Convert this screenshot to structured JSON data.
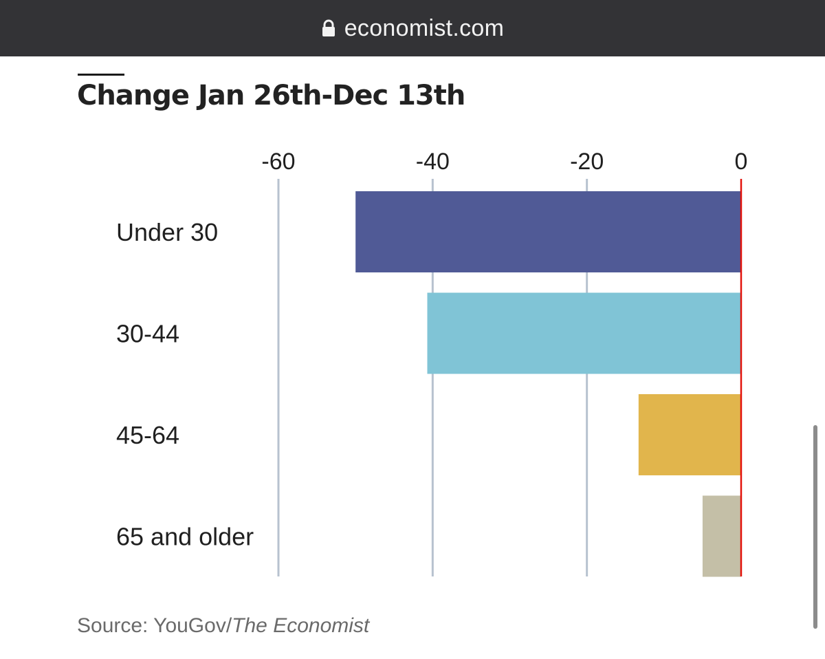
{
  "browser": {
    "url": "economist.com",
    "lock_icon": "lock-icon"
  },
  "colors": {
    "urlbar_bg": "#333336",
    "zero_line": "#e3120b",
    "gridline": "#b7c2cf"
  },
  "chart_data": {
    "type": "bar",
    "orientation": "horizontal",
    "title": "Change Jan 26th-Dec 13th",
    "categories": [
      "Under 30",
      "30-44",
      "45-64",
      "65 and older"
    ],
    "values": [
      -50,
      -40.7,
      -13.3,
      -5
    ],
    "bar_colors": [
      "#505a96",
      "#80c4d6",
      "#e1b54c",
      "#c4bfa7"
    ],
    "xlim": [
      -60,
      0
    ],
    "xticks": [
      -60,
      -40,
      -20,
      0
    ],
    "xtick_labels": [
      "-60",
      "-40",
      "-20",
      "0"
    ],
    "grid": true,
    "xlabel": "",
    "ylabel": "",
    "source_prefix": "Source: YouGov/",
    "source_italic": "The Economist"
  }
}
